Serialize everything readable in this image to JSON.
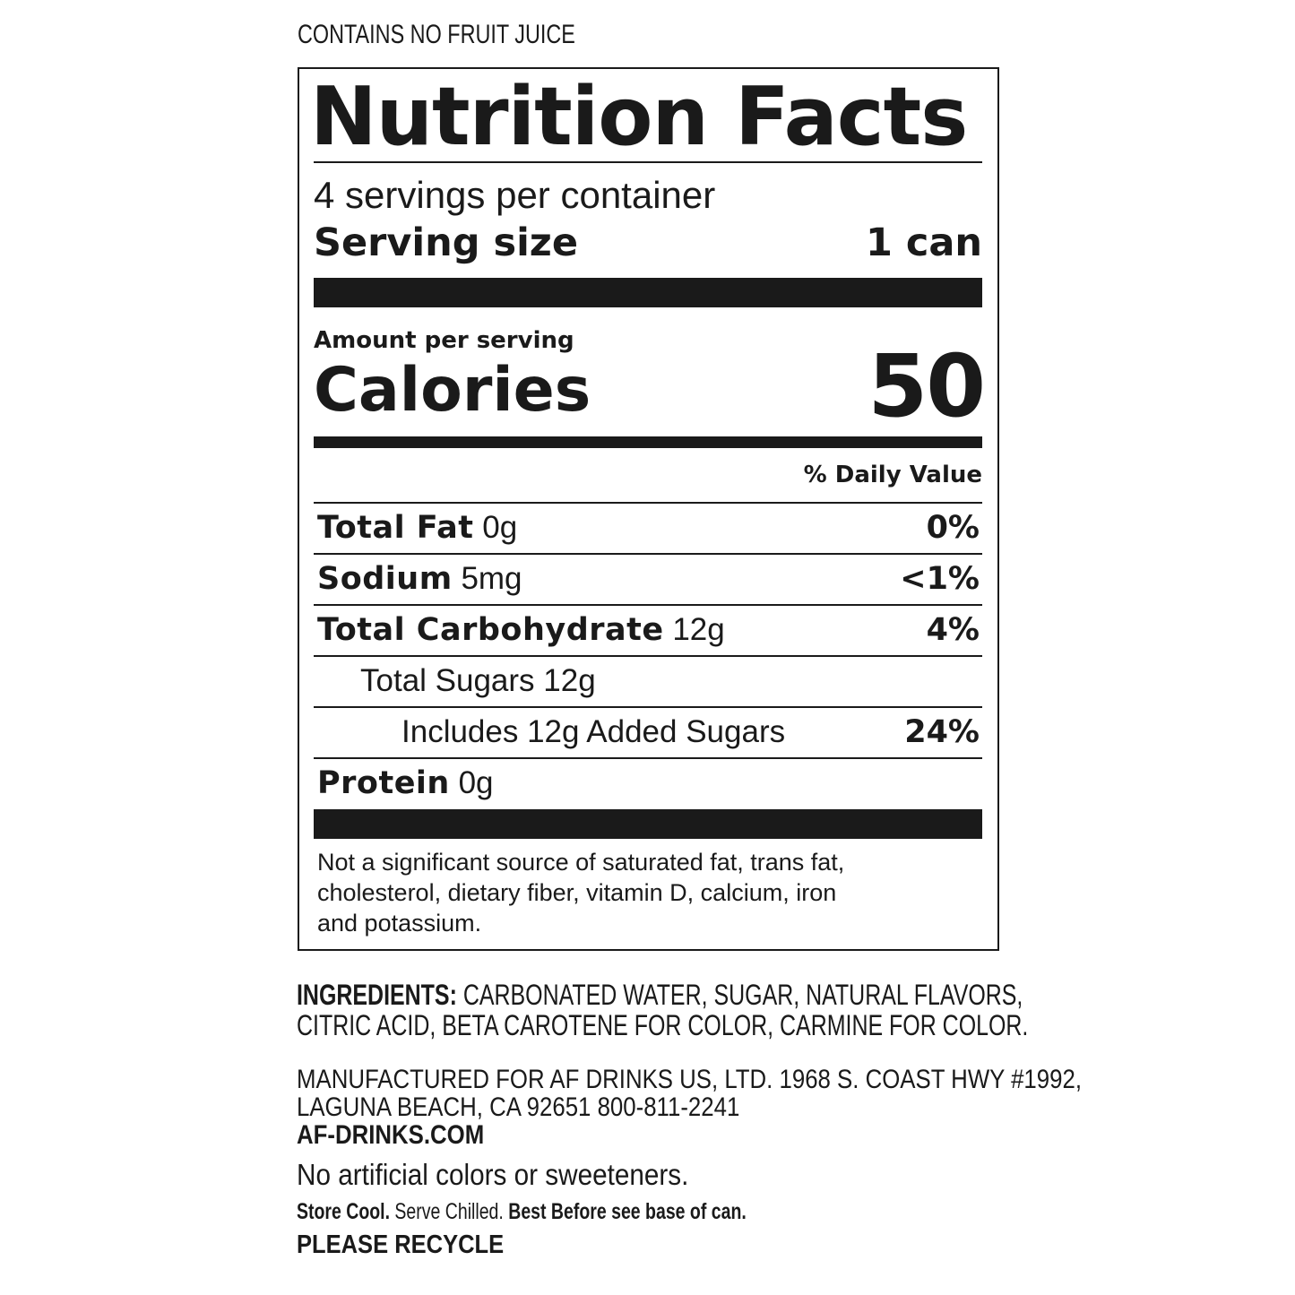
{
  "header_note": "CONTAINS NO FRUIT JUICE",
  "label": {
    "title": "Nutrition Facts",
    "servings_per_container": "4 servings per container",
    "serving_size_label": "Serving size",
    "serving_size_value": "1 can",
    "amount_per_serving": "Amount per serving",
    "calories_label": "Calories",
    "calories_value": "50",
    "daily_value_header": "% Daily Value",
    "nutrients": [
      {
        "name": "Total Fat",
        "amount": "0g",
        "dv": "0%"
      },
      {
        "name": "Sodium",
        "amount": "5mg",
        "dv": "<1%"
      },
      {
        "name": "Total Carbohydrate",
        "amount": "12g",
        "dv": "4%"
      },
      {
        "name": "Total Sugars 12g",
        "amount": "",
        "dv": ""
      },
      {
        "name": "Includes 12g Added Sugars",
        "amount": "",
        "dv": "24%"
      },
      {
        "name": "Protein",
        "amount": "0g",
        "dv": ""
      }
    ],
    "footnote_lines": [
      "Not a significant source of saturated fat, trans fat,",
      "cholesterol, dietary fiber, vitamin D, calcium, iron",
      "and potassium."
    ]
  },
  "ingredients": {
    "label": "INGREDIENTS:",
    "line1": "CARBONATED WATER, SUGAR, NATURAL FLAVORS,",
    "line2": "CITRIC ACID, BETA CAROTENE FOR COLOR, CARMINE FOR COLOR."
  },
  "manufacturer": {
    "line1": "MANUFACTURED FOR AF DRINKS US, LTD. 1968 S. COAST HWY #1992,",
    "line2": "LAGUNA BEACH, CA 92651  800-811-2241",
    "website": "AF-DRINKS.COM"
  },
  "claim": "No artificial colors or sweeteners.",
  "storage": {
    "part1": "Store Cool.",
    "part2": " Serve Chilled. ",
    "part3": "Best Before see base of can."
  },
  "recycle": "PLEASE RECYCLE"
}
